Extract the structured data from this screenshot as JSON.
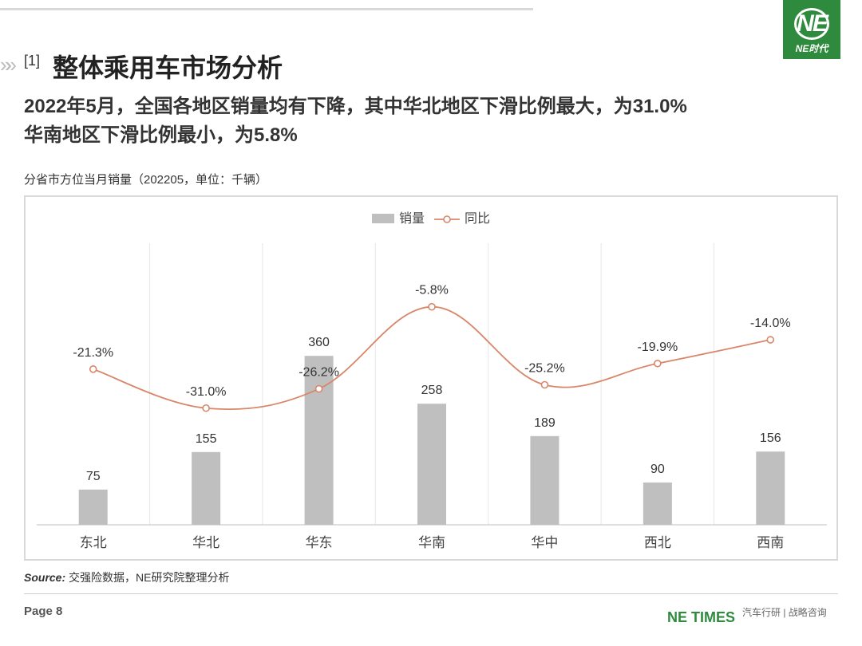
{
  "logo": {
    "mark": "NE",
    "text": "NE时代"
  },
  "header": {
    "section_number": "[1]",
    "title": "整体乘用车市场分析",
    "headline_line1": "2022年5月，全国各地区销量均有下降，其中华北地区下滑比例最大，为31.0%",
    "headline_line2": "华南地区下滑比例最小，为5.8%"
  },
  "chart_subtitle": "分省市方位当月销量（202205，单位：千辆）",
  "chart_data": {
    "type": "bar",
    "categories": [
      "东北",
      "华北",
      "华东",
      "华南",
      "华中",
      "西北",
      "西南"
    ],
    "series": [
      {
        "name": "销量",
        "type": "bar",
        "values": [
          75,
          155,
          360,
          258,
          189,
          90,
          156
        ],
        "color": "#bfbfbf"
      },
      {
        "name": "同比",
        "type": "line",
        "values": [
          -21.3,
          -31.0,
          -26.2,
          -5.8,
          -25.2,
          -19.9,
          -14.0
        ],
        "value_labels": [
          "-21.3%",
          "-31.0%",
          "-26.2%",
          "-5.8%",
          "-25.2%",
          "-19.9%",
          "-14.0%"
        ],
        "color": "#d9876a"
      }
    ],
    "legend_position": "top-center",
    "grid": "vertical"
  },
  "footer": {
    "source_label": "Source:",
    "source_text": "交强险数据，NE研究院整理分析",
    "page": "Page 8",
    "brand": "NE TIMES",
    "tagline": "汽车行研 | 战略咨询"
  }
}
